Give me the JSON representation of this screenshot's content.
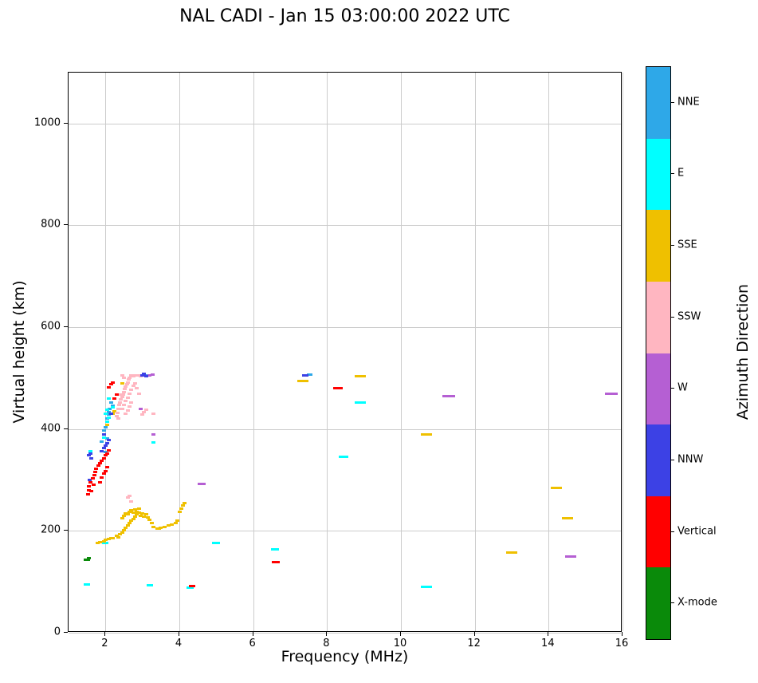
{
  "chart_data": {
    "type": "scatter",
    "title": "NAL CADI - Jan 15 03:00:00 2022 UTC",
    "xlabel": "Frequency (MHz)",
    "ylabel": "Virtual height (km)",
    "colorbar_label": "Azimuth Direction",
    "xlim": [
      1,
      16
    ],
    "ylim": [
      0,
      1100
    ],
    "xticks": [
      2,
      4,
      6,
      8,
      10,
      12,
      14,
      16
    ],
    "yticks": [
      0,
      200,
      400,
      600,
      800,
      1000
    ],
    "grid": true,
    "legend_position": "right-colorbar",
    "colorbar": [
      {
        "label": "NNE",
        "color": "#2EA8E8"
      },
      {
        "label": "E",
        "color": "#00FFFF"
      },
      {
        "label": "SSE",
        "color": "#EFC000"
      },
      {
        "label": "SSW",
        "color": "#FFB6C1"
      },
      {
        "label": "W",
        "color": "#B55FD3"
      },
      {
        "label": "NNW",
        "color": "#3C41E5"
      },
      {
        "label": "Vertical",
        "color": "#FF0000"
      },
      {
        "label": "X-mode",
        "color": "#0A8A0A"
      }
    ],
    "series": [
      {
        "name": "NNE",
        "color": "#2EA8E8",
        "points": [
          [
            1.95,
            398
          ],
          [
            2.0,
            404
          ],
          [
            2.05,
            420
          ],
          [
            2.08,
            428
          ],
          [
            2.1,
            434
          ],
          [
            2.12,
            440
          ],
          [
            2.15,
            452
          ],
          [
            2.2,
            446
          ],
          [
            1.9,
            375
          ],
          [
            2.0,
            355
          ],
          [
            2.05,
            382
          ],
          [
            3.08,
            506
          ],
          [
            7.52,
            507,
            7
          ]
        ]
      },
      {
        "name": "E",
        "color": "#00FFFF",
        "points": [
          [
            1.5,
            95,
            8
          ],
          [
            1.52,
            143
          ],
          [
            2.0,
            177,
            8
          ],
          [
            3.2,
            93,
            8
          ],
          [
            4.3,
            88,
            9
          ],
          [
            5.0,
            176,
            10
          ],
          [
            6.6,
            163,
            10
          ],
          [
            8.45,
            345,
            12
          ],
          [
            8.9,
            452,
            14
          ],
          [
            10.7,
            90,
            14
          ],
          [
            1.95,
            383
          ],
          [
            2.0,
            430
          ],
          [
            2.05,
            415
          ],
          [
            2.05,
            438
          ],
          [
            2.1,
            422
          ],
          [
            2.1,
            460
          ],
          [
            2.2,
            443
          ],
          [
            3.3,
            374
          ],
          [
            1.6,
            357
          ]
        ]
      },
      {
        "name": "SSE",
        "color": "#EFC000",
        "points": [
          [
            1.78,
            176
          ],
          [
            1.85,
            178
          ],
          [
            1.95,
            180
          ],
          [
            2.0,
            182
          ],
          [
            2.1,
            184
          ],
          [
            2.15,
            185
          ],
          [
            2.2,
            186
          ],
          [
            2.3,
            190
          ],
          [
            2.35,
            188
          ],
          [
            2.4,
            193
          ],
          [
            2.45,
            197
          ],
          [
            2.5,
            202
          ],
          [
            2.55,
            206
          ],
          [
            2.6,
            210
          ],
          [
            2.65,
            215
          ],
          [
            2.7,
            220
          ],
          [
            2.75,
            224
          ],
          [
            2.8,
            228
          ],
          [
            2.85,
            232
          ],
          [
            2.9,
            236
          ],
          [
            2.95,
            230
          ],
          [
            3.0,
            234
          ],
          [
            3.05,
            228
          ],
          [
            3.1,
            232
          ],
          [
            3.15,
            226
          ],
          [
            3.2,
            222
          ],
          [
            3.25,
            215
          ],
          [
            3.3,
            208
          ],
          [
            3.4,
            205
          ],
          [
            3.45,
            204
          ],
          [
            3.5,
            206
          ],
          [
            3.6,
            208
          ],
          [
            3.7,
            210
          ],
          [
            3.8,
            212
          ],
          [
            3.9,
            215
          ],
          [
            3.95,
            220
          ],
          [
            4.0,
            238
          ],
          [
            4.05,
            244
          ],
          [
            4.1,
            250
          ],
          [
            4.15,
            255
          ],
          [
            2.45,
            225
          ],
          [
            2.5,
            230
          ],
          [
            2.55,
            235
          ],
          [
            2.6,
            232
          ],
          [
            2.65,
            238
          ],
          [
            2.7,
            240
          ],
          [
            2.75,
            236
          ],
          [
            2.8,
            242
          ],
          [
            2.85,
            238
          ],
          [
            2.9,
            244
          ],
          [
            2.05,
            408
          ],
          [
            2.2,
            430
          ],
          [
            2.25,
            435
          ],
          [
            2.45,
            490
          ],
          [
            2.5,
            472
          ],
          [
            7.35,
            494,
            14
          ],
          [
            8.9,
            503,
            14
          ],
          [
            10.7,
            390,
            14
          ],
          [
            13.0,
            157,
            14
          ],
          [
            14.2,
            285,
            14
          ],
          [
            14.5,
            225,
            14
          ]
        ]
      },
      {
        "name": "SSW",
        "color": "#FFB6C1",
        "points": [
          [
            2.3,
            425
          ],
          [
            2.32,
            432
          ],
          [
            2.35,
            440
          ],
          [
            2.38,
            447
          ],
          [
            2.4,
            452
          ],
          [
            2.42,
            458
          ],
          [
            2.45,
            463
          ],
          [
            2.48,
            468
          ],
          [
            2.5,
            473
          ],
          [
            2.52,
            478
          ],
          [
            2.55,
            483
          ],
          [
            2.58,
            488
          ],
          [
            2.6,
            492
          ],
          [
            2.62,
            497
          ],
          [
            2.65,
            501
          ],
          [
            2.7,
            505
          ],
          [
            2.75,
            503
          ],
          [
            2.8,
            506
          ],
          [
            2.45,
            440
          ],
          [
            2.5,
            447
          ],
          [
            2.55,
            455
          ],
          [
            2.6,
            462
          ],
          [
            2.65,
            470
          ],
          [
            2.7,
            477
          ],
          [
            2.75,
            485
          ],
          [
            2.8,
            490
          ],
          [
            2.85,
            480
          ],
          [
            2.9,
            470
          ],
          [
            2.55,
            430
          ],
          [
            2.6,
            437
          ],
          [
            2.65,
            445
          ],
          [
            2.7,
            452
          ],
          [
            2.35,
            420
          ],
          [
            2.4,
            468
          ],
          [
            2.45,
            505
          ],
          [
            2.5,
            500
          ],
          [
            2.9,
            505
          ],
          [
            2.95,
            503
          ],
          [
            3.0,
            428
          ],
          [
            3.05,
            433
          ],
          [
            3.1,
            438
          ],
          [
            3.3,
            430
          ],
          [
            2.6,
            265
          ],
          [
            2.65,
            268
          ],
          [
            2.7,
            258
          ]
        ]
      },
      {
        "name": "W",
        "color": "#B55FD3",
        "points": [
          [
            3.2,
            505
          ],
          [
            3.28,
            507
          ],
          [
            2.95,
            440
          ],
          [
            3.3,
            390
          ],
          [
            4.6,
            293,
            10
          ],
          [
            11.3,
            465,
            16
          ],
          [
            14.6,
            150,
            14
          ],
          [
            15.7,
            470,
            16
          ]
        ]
      },
      {
        "name": "NNW",
        "color": "#3C41E5",
        "points": [
          [
            1.55,
            348
          ],
          [
            1.6,
            352
          ],
          [
            1.62,
            342
          ],
          [
            1.58,
            300
          ],
          [
            1.9,
            356
          ],
          [
            1.95,
            362
          ],
          [
            1.95,
            390
          ],
          [
            2.0,
            368
          ],
          [
            2.05,
            372
          ],
          [
            2.1,
            378
          ],
          [
            2.15,
            430
          ],
          [
            3.0,
            506
          ],
          [
            3.05,
            509
          ],
          [
            3.1,
            504
          ],
          [
            7.42,
            505,
            8
          ]
        ]
      },
      {
        "name": "Vertical",
        "color": "#FF0000",
        "points": [
          [
            1.52,
            272
          ],
          [
            1.54,
            280
          ],
          [
            1.56,
            288
          ],
          [
            1.6,
            295
          ],
          [
            1.62,
            278
          ],
          [
            1.65,
            303
          ],
          [
            1.68,
            290
          ],
          [
            1.7,
            310
          ],
          [
            1.72,
            316
          ],
          [
            1.75,
            322
          ],
          [
            1.8,
            328
          ],
          [
            1.85,
            333
          ],
          [
            1.85,
            295
          ],
          [
            1.9,
            338
          ],
          [
            1.9,
            305
          ],
          [
            1.95,
            343
          ],
          [
            1.95,
            312
          ],
          [
            2.0,
            348
          ],
          [
            2.0,
            318
          ],
          [
            2.05,
            325
          ],
          [
            2.05,
            352
          ],
          [
            2.1,
            358
          ],
          [
            2.1,
            482
          ],
          [
            2.15,
            488
          ],
          [
            2.2,
            492
          ],
          [
            2.25,
            460
          ],
          [
            2.3,
            468
          ],
          [
            4.35,
            91,
            8
          ],
          [
            6.62,
            138,
            10
          ],
          [
            8.3,
            480,
            12
          ]
        ]
      },
      {
        "name": "X-mode",
        "color": "#0A8A0A",
        "points": [
          [
            1.5,
            144,
            8
          ],
          [
            1.55,
            146
          ]
        ]
      }
    ]
  }
}
